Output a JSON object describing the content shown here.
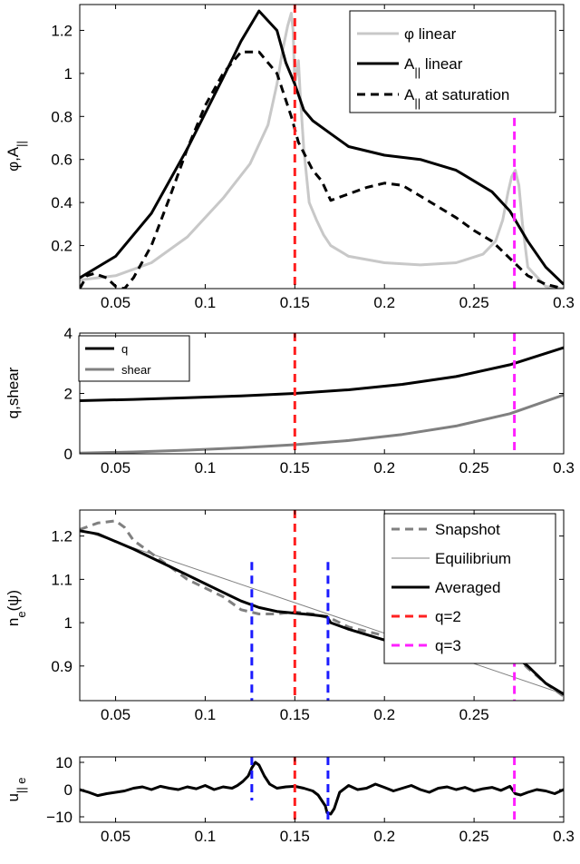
{
  "chart_data": [
    {
      "type": "line",
      "ylabel": "φ,A||",
      "xlim": [
        0.03,
        0.3
      ],
      "ylim": [
        0,
        1.32
      ],
      "xticks": [
        0.05,
        0.1,
        0.15,
        0.2,
        0.25,
        0.3
      ],
      "xtick_labels": [
        "0.05",
        "0.1",
        "0.15",
        "0.2",
        "0.25",
        "0.3"
      ],
      "yticks": [
        0.2,
        0.4,
        0.6,
        0.8,
        1,
        1.2
      ],
      "ytick_labels": [
        "0.2",
        "0.4",
        "0.6",
        "0.8",
        "1",
        "1.2"
      ],
      "legend_position": "top-right",
      "series": [
        {
          "name": "φ linear",
          "color": "#c8c8c8",
          "dash": "solid",
          "x": [
            0.03,
            0.05,
            0.07,
            0.09,
            0.11,
            0.125,
            0.135,
            0.14,
            0.143,
            0.146,
            0.148,
            0.149,
            0.15,
            0.151,
            0.152,
            0.153,
            0.155,
            0.158,
            0.162,
            0.166,
            0.17,
            0.18,
            0.2,
            0.22,
            0.24,
            0.255,
            0.262,
            0.266,
            0.269,
            0.271,
            0.273,
            0.275,
            0.277,
            0.28,
            0.29,
            0.3
          ],
          "y": [
            0.04,
            0.06,
            0.12,
            0.24,
            0.42,
            0.58,
            0.76,
            0.95,
            1.1,
            1.22,
            1.28,
            1.2,
            0.95,
            1.0,
            1.06,
            0.9,
            0.65,
            0.4,
            0.32,
            0.25,
            0.2,
            0.15,
            0.12,
            0.11,
            0.12,
            0.16,
            0.22,
            0.32,
            0.45,
            0.52,
            0.55,
            0.48,
            0.3,
            0.1,
            0.01,
            0.0
          ]
        },
        {
          "name": "A|| linear",
          "color": "#000000",
          "dash": "solid",
          "x": [
            0.03,
            0.05,
            0.07,
            0.09,
            0.11,
            0.12,
            0.13,
            0.14,
            0.145,
            0.15,
            0.155,
            0.16,
            0.17,
            0.18,
            0.2,
            0.22,
            0.24,
            0.26,
            0.27,
            0.28,
            0.29,
            0.3
          ],
          "y": [
            0.05,
            0.15,
            0.35,
            0.65,
            0.98,
            1.15,
            1.29,
            1.2,
            1.05,
            0.95,
            0.83,
            0.78,
            0.72,
            0.66,
            0.62,
            0.6,
            0.55,
            0.45,
            0.36,
            0.22,
            0.1,
            0.02
          ]
        },
        {
          "name": "A|| at saturation",
          "color": "#000000",
          "dash": "dashed",
          "x": [
            0.03,
            0.034,
            0.038,
            0.045,
            0.05,
            0.055,
            0.06,
            0.07,
            0.08,
            0.09,
            0.1,
            0.11,
            0.12,
            0.13,
            0.14,
            0.148,
            0.152,
            0.16,
            0.165,
            0.17,
            0.18,
            0.19,
            0.2,
            0.21,
            0.22,
            0.23,
            0.24,
            0.25,
            0.26,
            0.27,
            0.28,
            0.29,
            0.3
          ],
          "y": [
            0.0,
            0.06,
            0.07,
            0.05,
            0.01,
            0.0,
            0.05,
            0.2,
            0.42,
            0.65,
            0.85,
            1.0,
            1.1,
            1.1,
            1.0,
            0.8,
            0.68,
            0.55,
            0.5,
            0.41,
            0.44,
            0.47,
            0.49,
            0.48,
            0.43,
            0.38,
            0.33,
            0.27,
            0.22,
            0.14,
            0.06,
            0.02,
            0.0
          ]
        }
      ],
      "vlines": [
        {
          "x": 0.15,
          "color": "#ff2020",
          "y0": 0,
          "y1": 1.32
        },
        {
          "x": 0.2725,
          "color": "#ff20ff",
          "y0": 0,
          "y1": 0.92
        }
      ]
    },
    {
      "type": "line",
      "ylabel": "q,shear",
      "xlim": [
        0.03,
        0.3
      ],
      "ylim": [
        0,
        4
      ],
      "xticks": [
        0.05,
        0.1,
        0.15,
        0.2,
        0.25,
        0.3
      ],
      "xtick_labels": [
        "0.05",
        "0.1",
        "0.15",
        "0.2",
        "0.25",
        "0.3"
      ],
      "yticks": [
        0,
        2,
        4
      ],
      "ytick_labels": [
        "0",
        "2",
        "4"
      ],
      "legend_position": "top-left",
      "series": [
        {
          "name": "q",
          "color": "#000000",
          "dash": "solid",
          "x": [
            0.03,
            0.06,
            0.09,
            0.12,
            0.15,
            0.18,
            0.21,
            0.24,
            0.27,
            0.3
          ],
          "y": [
            1.76,
            1.8,
            1.86,
            1.92,
            2.0,
            2.12,
            2.3,
            2.56,
            2.95,
            3.52
          ]
        },
        {
          "name": "shear",
          "color": "#808080",
          "dash": "solid",
          "x": [
            0.03,
            0.06,
            0.09,
            0.12,
            0.15,
            0.18,
            0.21,
            0.24,
            0.27,
            0.3
          ],
          "y": [
            0.02,
            0.06,
            0.12,
            0.2,
            0.3,
            0.44,
            0.64,
            0.92,
            1.33,
            1.95
          ]
        }
      ],
      "vlines": [
        {
          "x": 0.15,
          "color": "#ff2020",
          "y0": 0,
          "y1": 4
        },
        {
          "x": 0.2725,
          "color": "#ff20ff",
          "y0": 0,
          "y1": 4
        }
      ]
    },
    {
      "type": "line",
      "ylabel": "ne(ψ)",
      "xlim": [
        0.03,
        0.3
      ],
      "ylim": [
        0.82,
        1.26
      ],
      "xticks": [
        0.05,
        0.1,
        0.15,
        0.2,
        0.25
      ],
      "xtick_labels": [
        "0.05",
        "0.1",
        "0.15",
        "0.2",
        "0.25"
      ],
      "yticks": [
        0.9,
        1.0,
        1.1,
        1.2
      ],
      "ytick_labels": [
        "0.9",
        "1",
        "1.1",
        "1.2"
      ],
      "legend_position": "top-right",
      "series": [
        {
          "name": "Snapshot",
          "color": "#808080",
          "dash": "dashed",
          "x": [
            0.03,
            0.04,
            0.05,
            0.055,
            0.06,
            0.07,
            0.08,
            0.09,
            0.1,
            0.11,
            0.12,
            0.13,
            0.14,
            0.15,
            0.16,
            0.17,
            0.18,
            0.2,
            0.22,
            0.24,
            0.25,
            0.26,
            0.265,
            0.27,
            0.275,
            0.28,
            0.29,
            0.3
          ],
          "y": [
            1.215,
            1.23,
            1.235,
            1.22,
            1.19,
            1.16,
            1.13,
            1.1,
            1.08,
            1.06,
            1.03,
            1.02,
            1.02,
            1.025,
            1.02,
            1.01,
            0.99,
            0.97,
            0.95,
            0.93,
            0.935,
            0.945,
            0.94,
            0.92,
            0.915,
            0.895,
            0.86,
            0.83
          ]
        },
        {
          "name": "Equilibrium",
          "color": "#808080",
          "dash": "solid",
          "thin": true,
          "x": [
            0.03,
            0.3
          ],
          "y": [
            1.215,
            0.835
          ]
        },
        {
          "name": "Averaged",
          "color": "#000000",
          "dash": "solid",
          "x": [
            0.03,
            0.04,
            0.06,
            0.08,
            0.1,
            0.11,
            0.12,
            0.13,
            0.14,
            0.15,
            0.16,
            0.168,
            0.17,
            0.18,
            0.2,
            0.22,
            0.24,
            0.26,
            0.27,
            0.275,
            0.28,
            0.29,
            0.3
          ],
          "y": [
            1.212,
            1.205,
            1.17,
            1.13,
            1.09,
            1.07,
            1.05,
            1.035,
            1.026,
            1.022,
            1.018,
            1.014,
            1.0,
            0.985,
            0.96,
            0.94,
            0.925,
            0.92,
            0.918,
            0.915,
            0.9,
            0.86,
            0.835
          ]
        }
      ],
      "legend_extra": [
        {
          "name": "q=2",
          "color": "#ff2020",
          "dash": "dashed"
        },
        {
          "name": "q=3",
          "color": "#ff20ff",
          "dash": "dashed"
        }
      ],
      "vlines": [
        {
          "x": 0.15,
          "color": "#ff2020",
          "y0": 0.82,
          "y1": 1.26
        },
        {
          "x": 0.2725,
          "color": "#ff20ff",
          "y0": 0.82,
          "y1": 0.98
        },
        {
          "x": 0.126,
          "color": "#1a1aff",
          "y0": 0.82,
          "y1": 1.14
        },
        {
          "x": 0.1685,
          "color": "#1a1aff",
          "y0": 0.82,
          "y1": 1.14
        }
      ]
    },
    {
      "type": "line",
      "ylabel": "u||e",
      "xlim": [
        0.03,
        0.3
      ],
      "ylim": [
        -12,
        12
      ],
      "xticks": [
        0.05,
        0.1,
        0.15,
        0.2,
        0.25,
        0.3
      ],
      "xtick_labels": [
        "0.05",
        "0.1",
        "0.15",
        "0.2",
        "0.25",
        "0.3"
      ],
      "yticks": [
        -10,
        0,
        10
      ],
      "ytick_labels": [
        "−10",
        "0",
        "10"
      ],
      "series": [
        {
          "name": "",
          "color": "#000000",
          "dash": "solid",
          "x": [
            0.03,
            0.035,
            0.04,
            0.045,
            0.05,
            0.055,
            0.06,
            0.065,
            0.07,
            0.075,
            0.08,
            0.085,
            0.09,
            0.095,
            0.1,
            0.105,
            0.11,
            0.115,
            0.118,
            0.121,
            0.124,
            0.126,
            0.128,
            0.13,
            0.133,
            0.136,
            0.14,
            0.145,
            0.15,
            0.155,
            0.16,
            0.163,
            0.165,
            0.167,
            0.168,
            0.17,
            0.172,
            0.175,
            0.18,
            0.185,
            0.19,
            0.195,
            0.2,
            0.205,
            0.21,
            0.215,
            0.22,
            0.225,
            0.23,
            0.235,
            0.24,
            0.245,
            0.25,
            0.255,
            0.26,
            0.265,
            0.27,
            0.273,
            0.276,
            0.28,
            0.285,
            0.29,
            0.295,
            0.3
          ],
          "y": [
            0,
            -1,
            -2.2,
            -1.5,
            -1,
            -0.5,
            0.5,
            1,
            0,
            1.2,
            0.5,
            0,
            1,
            0.3,
            1.5,
            0,
            1,
            0.5,
            1.5,
            3,
            5,
            8,
            10,
            9,
            5,
            2,
            0.5,
            1,
            1.2,
            0.5,
            -0.5,
            -2,
            -4,
            -6,
            -8.5,
            -9,
            -7,
            -1,
            1.5,
            0,
            0.5,
            2,
            0.8,
            -0.5,
            0.5,
            1.5,
            0,
            -1,
            0.5,
            1,
            0,
            0.8,
            -0.5,
            0.3,
            0.8,
            -0.3,
            1.2,
            -1.5,
            -2,
            -1,
            0,
            -0.5,
            -1.5,
            0
          ]
        }
      ],
      "vlines": [
        {
          "x": 0.15,
          "color": "#ff2020",
          "y0": -12,
          "y1": 12
        },
        {
          "x": 0.2725,
          "color": "#ff20ff",
          "y0": -12,
          "y1": 12
        },
        {
          "x": 0.126,
          "color": "#1a1aff",
          "y0": -4,
          "y1": 12
        },
        {
          "x": 0.1685,
          "color": "#1a1aff",
          "y0": -12,
          "y1": 12
        }
      ]
    }
  ]
}
